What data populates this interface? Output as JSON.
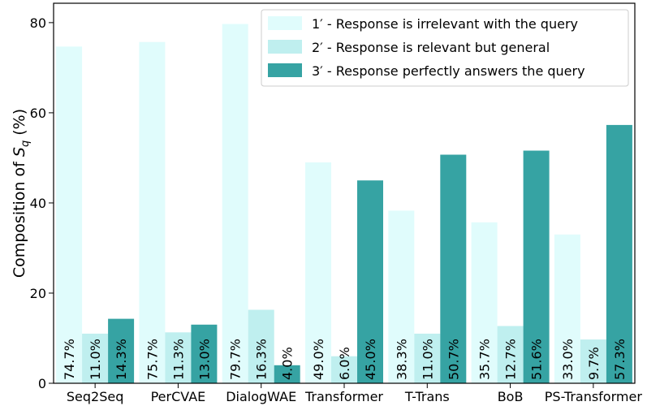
{
  "chart_data": {
    "type": "bar",
    "categories": [
      "Seq2Seq",
      "PerCVAE",
      "DialogWAE",
      "Transformer",
      "T-Trans",
      "BoB",
      "PS-Transformer"
    ],
    "series": [
      {
        "name": "1′ - Response is irrelevant with the query",
        "values": [
          74.7,
          75.7,
          79.7,
          49.0,
          38.3,
          35.7,
          33.0
        ],
        "labels": [
          "74.7%",
          "75.7%",
          "79.7%",
          "49.0%",
          "38.3%",
          "35.7%",
          "33.0%"
        ],
        "color": "#e0fcfc"
      },
      {
        "name": "2′ - Response is relevant but general",
        "values": [
          11.0,
          11.3,
          16.3,
          6.0,
          11.0,
          12.7,
          9.7
        ],
        "labels": [
          "11.0%",
          "11.3%",
          "16.3%",
          "6.0%",
          "11.0%",
          "12.7%",
          "9.7%"
        ],
        "color": "#bfefef"
      },
      {
        "name": "3′ - Response perfectly answers the query",
        "values": [
          14.3,
          13.0,
          4.0,
          45.0,
          50.7,
          51.6,
          57.3
        ],
        "labels": [
          "14.3%",
          "13.0%",
          "4.0%",
          "45.0%",
          "50.7%",
          "51.6%",
          "57.3%"
        ],
        "color": "#36a3a3"
      }
    ],
    "xlabel": "",
    "ylabel": "Composition of S_q (%)",
    "ylim": [
      0,
      80
    ],
    "yticks": [
      "0",
      "20",
      "40",
      "60",
      "80"
    ],
    "legend_position": "top-right",
    "grid": false
  }
}
